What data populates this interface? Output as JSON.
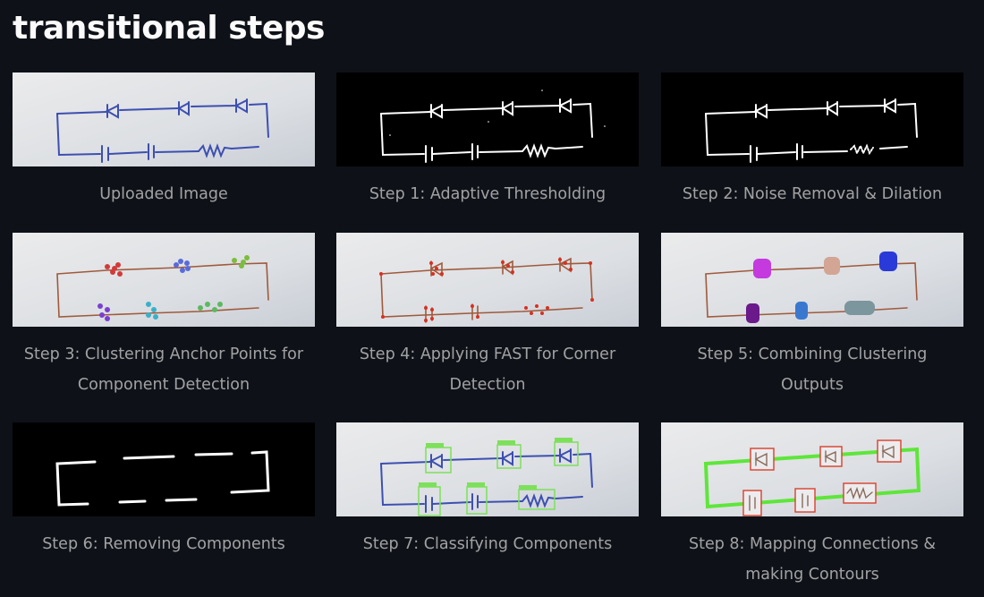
{
  "page": {
    "title": "transitional steps"
  },
  "steps": [
    {
      "caption": "Uploaded Image",
      "style": "photo-blue"
    },
    {
      "caption": "Step 1: Adaptive Thresholding",
      "style": "binary"
    },
    {
      "caption": "Step 2: Noise Removal & Dilation",
      "style": "binary"
    },
    {
      "caption": "Step 3: Clustering Anchor Points for Component Detection",
      "style": "photo-brown-clusters"
    },
    {
      "caption": "Step 4: Applying FAST for Corner Detection",
      "style": "photo-brown-corners"
    },
    {
      "caption": "Step 5: Combining Clustering Outputs",
      "style": "photo-brown-blobs"
    },
    {
      "caption": "Step 6: Removing Components",
      "style": "binary-wires"
    },
    {
      "caption": "Step 7: Classifying Components",
      "style": "photo-blue-boxes"
    },
    {
      "caption": "Step 8: Mapping Connections & making Contours",
      "style": "photo-brown-contours"
    }
  ],
  "colors": {
    "background": "#0e1117",
    "paper": "#e3e4e6",
    "ink_blue": "#3d4fb0",
    "ink_brown": "#a05a3c",
    "box_green": "#7de05a",
    "box_red": "#d9402b",
    "contour_green": "#5ee63a"
  }
}
